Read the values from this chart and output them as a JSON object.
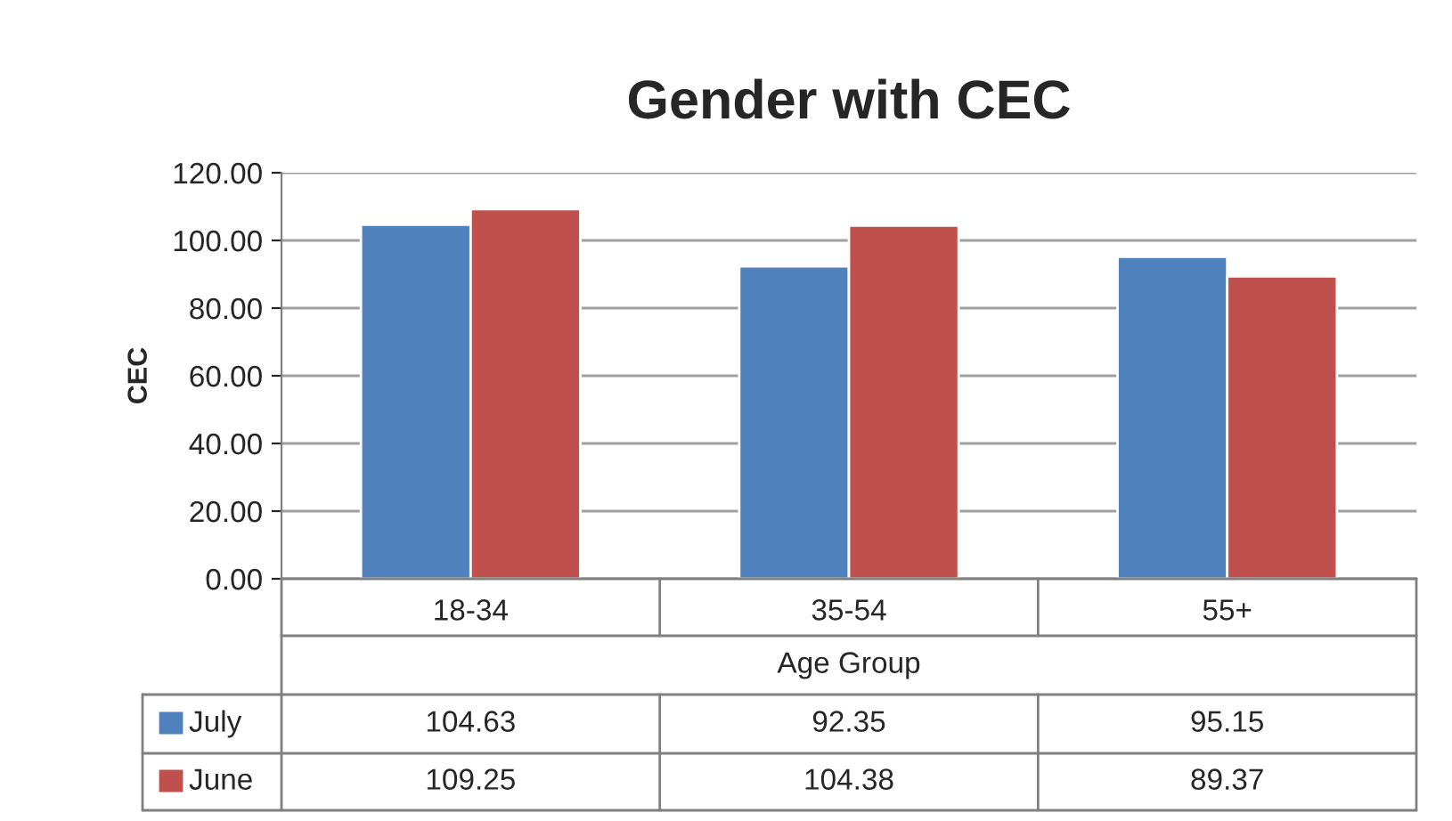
{
  "chart_data": {
    "type": "bar",
    "title": "Gender with CEC",
    "xlabel": "Age Group",
    "ylabel": "CEC",
    "categories": [
      "18-34",
      "35-54",
      "55+"
    ],
    "series": [
      {
        "name": "July",
        "color": "#4f81bd",
        "values": [
          104.63,
          92.35,
          95.15
        ]
      },
      {
        "name": "June",
        "color": "#c0504d",
        "values": [
          109.25,
          104.38,
          89.37
        ]
      }
    ],
    "ylim": [
      0,
      120
    ],
    "yticks": [
      {
        "value": 0,
        "label": "0.00"
      },
      {
        "value": 20,
        "label": "20.00"
      },
      {
        "value": 40,
        "label": "40.00"
      },
      {
        "value": 60,
        "label": "60.00"
      },
      {
        "value": 80,
        "label": "80.00"
      },
      {
        "value": 100,
        "label": "100.00"
      },
      {
        "value": 120,
        "label": "120.00"
      }
    ],
    "grid": "y",
    "legend": "bottom left",
    "data_labels": true
  }
}
